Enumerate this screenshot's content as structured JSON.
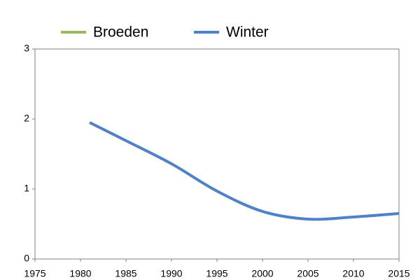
{
  "chart_data": {
    "type": "line",
    "x": [
      1981,
      1985,
      1990,
      1995,
      2000,
      2005,
      2010,
      2015
    ],
    "series": [
      {
        "name": "Broeden",
        "color": "#9bbb59",
        "values": [
          null,
          null,
          null,
          null,
          null,
          null,
          null,
          null
        ]
      },
      {
        "name": "Winter",
        "color": "#4f81c9",
        "values": [
          1.95,
          1.69,
          1.36,
          0.97,
          0.68,
          0.57,
          0.6,
          0.65
        ]
      }
    ],
    "xlim": [
      1975,
      2015
    ],
    "xticks": [
      1975,
      1980,
      1985,
      1990,
      1995,
      2000,
      2005,
      2010,
      2015
    ],
    "ylim": [
      0,
      3
    ],
    "yticks": [
      0,
      1,
      2,
      3
    ],
    "smooth": true
  }
}
